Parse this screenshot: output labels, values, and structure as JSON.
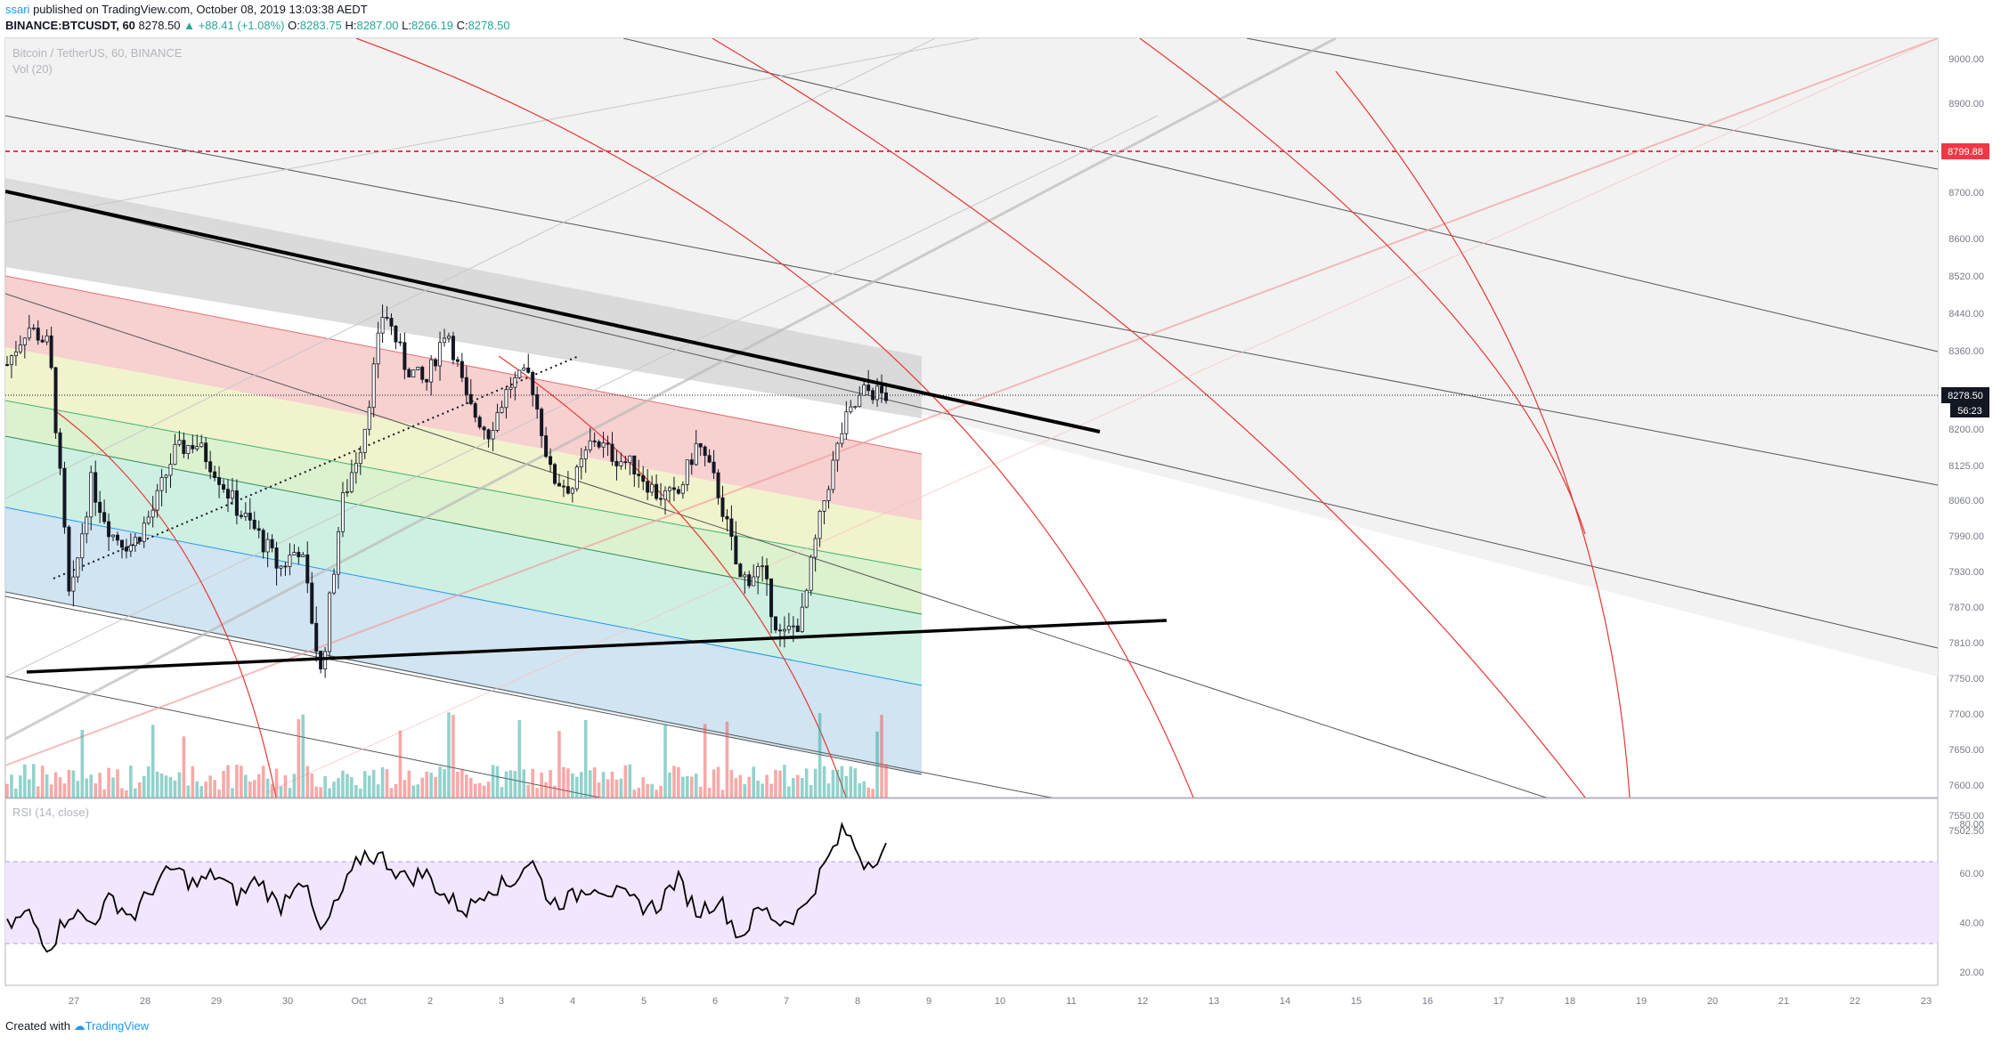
{
  "header": {
    "user": "ssari",
    "published": "published on TradingView.com, October 08, 2019 13:03:38 AEDT",
    "symbol": "BINANCE:BTCUSDT, 60",
    "last": "8278.50",
    "change": "▲ +88.41 (+1.08%)",
    "o_label": "O:",
    "o_value": "8283.75",
    "h_label": "H:",
    "h_value": "8287.00",
    "l_label": "L:",
    "l_value": "8266.19",
    "c_label": "C:",
    "c_value": "8278.50"
  },
  "legend": {
    "main": "Bitcoin / TetherUS, 60, BINANCE",
    "volume": "Vol (20)",
    "rsi": "RSI (14, close)"
  },
  "footer": {
    "created": "Created with",
    "brand": "TradingView"
  },
  "colors": {
    "up": "#26a69a",
    "down": "#ef5350",
    "trend": "#000000",
    "alert": "#f23645",
    "rsi_band": "#e9d7fb",
    "arc": "#f23645",
    "rsi_line": "#000000"
  },
  "chart_data": [
    {
      "type": "candlestick",
      "title": "Bitcoin / TetherUS, 60, BINANCE",
      "x_ticks": [
        "27",
        "28",
        "29",
        "30",
        "Oct",
        "2",
        "3",
        "4",
        "5",
        "6",
        "7",
        "8",
        "9",
        "10",
        "11",
        "12",
        "13",
        "14",
        "15",
        "16",
        "17",
        "18",
        "19",
        "20",
        "21",
        "22",
        "23"
      ],
      "y_ticks": [
        "9000.00",
        "8900.00",
        "8800.00",
        "8700.00",
        "8600.00",
        "8520.00",
        "8440.00",
        "8360.00",
        "8280.00",
        "8200.00",
        "8125.00",
        "8060.00",
        "7990.00",
        "7930.00",
        "7870.00",
        "7810.00",
        "7750.00",
        "7700.00",
        "7650.00",
        "7600.00",
        "7550.00",
        "7502.50"
      ],
      "price_labels": {
        "alert_level": "8799.88",
        "last_price": "8278.50",
        "countdown": "56:23"
      },
      "approx_close_path": [
        8340,
        8420,
        8380,
        7870,
        8100,
        8000,
        7980,
        8050,
        8160,
        8180,
        8120,
        8050,
        8000,
        7940,
        7980,
        7760,
        8060,
        8190,
        8460,
        8340,
        8300,
        8420,
        8260,
        8200,
        8300,
        8320,
        8110,
        8090,
        8190,
        8150,
        8130,
        8080,
        8070,
        8180,
        8080,
        7920,
        7940,
        7820,
        7860,
        8060,
        8220,
        8290,
        8278.5
      ]
    },
    {
      "type": "line",
      "title": "RSI (14, close)",
      "y_ticks": [
        "80.00",
        "60.00",
        "40.00",
        "20.00"
      ],
      "bands": [
        30,
        70
      ],
      "ylim": [
        15,
        90
      ],
      "values": [
        38,
        44,
        30,
        45,
        40,
        50,
        42,
        55,
        62,
        55,
        60,
        50,
        58,
        46,
        60,
        35,
        52,
        68,
        66,
        58,
        60,
        50,
        45,
        55,
        55,
        66,
        48,
        50,
        56,
        52,
        48,
        46,
        58,
        44,
        50,
        34,
        46,
        40,
        45,
        62,
        78,
        64,
        70
      ]
    }
  ]
}
